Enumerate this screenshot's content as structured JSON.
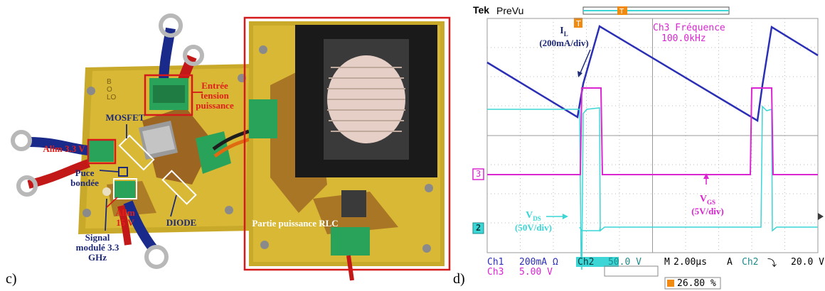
{
  "panel_c": {
    "letter": "c)",
    "board_text": "BO LO",
    "labels": {
      "entree": "Entrée tension puissance",
      "mosfet": "MOSFET",
      "alim33": "Alim 3.3 V",
      "puce": "Puce bondée",
      "alim15": "Alim 15 V",
      "diode": "DIODE",
      "signal": "Signal modulé 3.3 GHz",
      "partie": "Partie puissance RLC"
    }
  },
  "panel_d": {
    "letter": "d)",
    "scope": {
      "brand": "Tek",
      "mode": "PreVu",
      "ch3_freq_title": "Ch3 Fréquence",
      "ch3_freq_value": "100.0kHz",
      "il_label": "I",
      "il_sub": "L",
      "il_scale": "(200mA/div)",
      "vgs_label": "V",
      "vgs_sub": "GS",
      "vgs_scale": "(5V/div)",
      "vds_label": "V",
      "vds_sub": "DS",
      "vds_scale": "(50V/div)",
      "ch3_marker": "3",
      "ch2_marker": "2",
      "status": {
        "ch1": "Ch1",
        "ch1_val": "200mA Ω",
        "ch2": "Ch2",
        "ch2_val": "50.0 V",
        "m": "M",
        "m_val": "2.00µs",
        "a": "A",
        "a_ch": "Ch2",
        "a_slope": "⤵",
        "a_val": "20.0 V",
        "ch3": "Ch3",
        "ch3_val": "5.00 V",
        "duty": "26.80 %"
      },
      "colors": {
        "ch1": "#2b2fb5",
        "ch2": "#3cd6d6",
        "ch3": "#d926d0",
        "trigger": "#f08a10"
      }
    }
  }
}
